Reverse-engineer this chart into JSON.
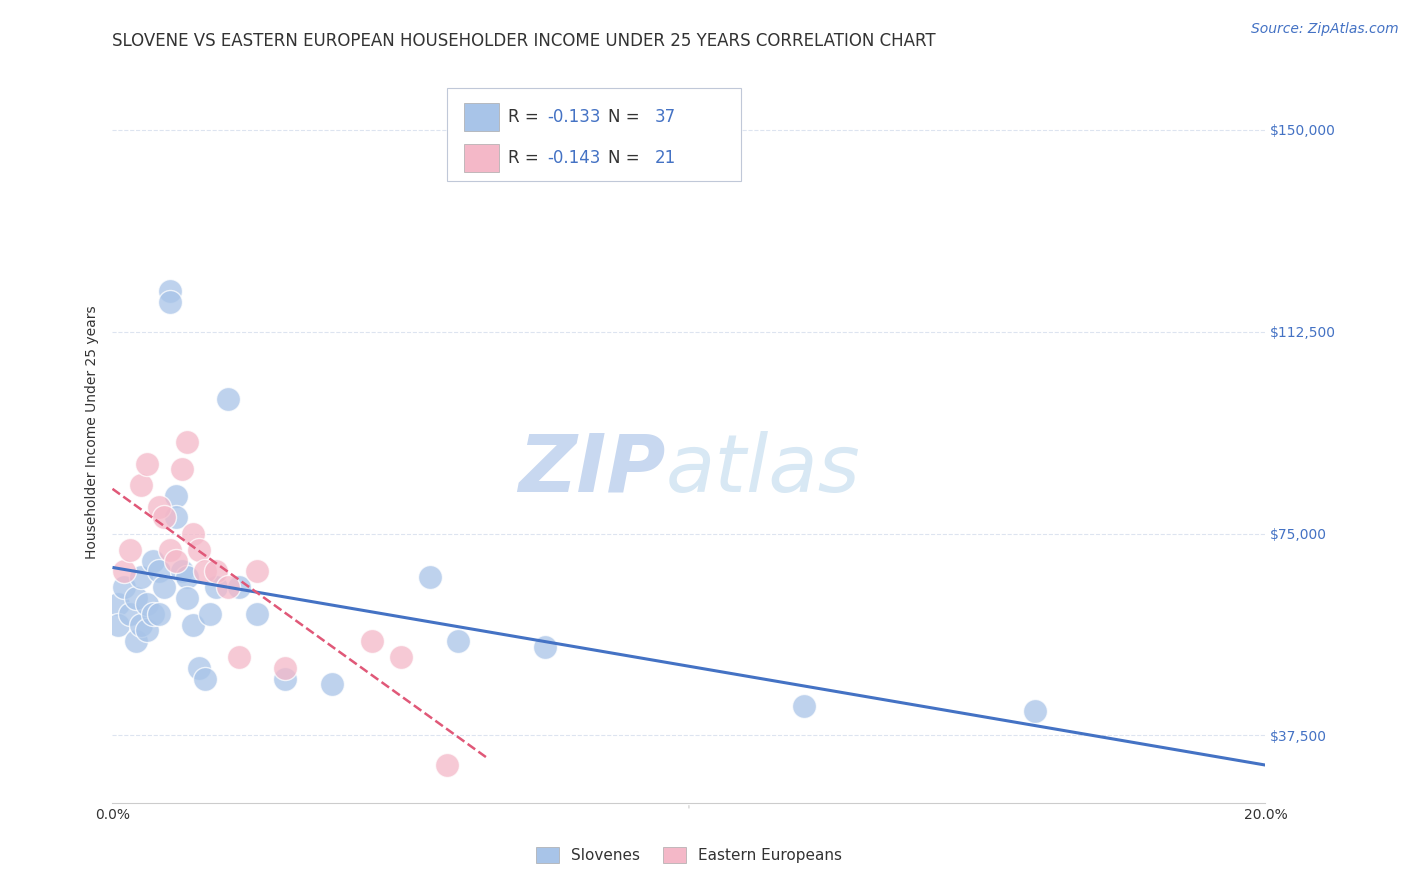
{
  "title": "SLOVENE VS EASTERN EUROPEAN HOUSEHOLDER INCOME UNDER 25 YEARS CORRELATION CHART",
  "source": "Source: ZipAtlas.com",
  "ylabel": "Householder Income Under 25 years",
  "xlim": [
    0.0,
    0.2
  ],
  "ylim": [
    25000,
    162500
  ],
  "yticks": [
    37500,
    75000,
    112500,
    150000
  ],
  "ytick_labels": [
    "$37,500",
    "$75,000",
    "$112,500",
    "$150,000"
  ],
  "xticks": [
    0.0,
    0.04,
    0.08,
    0.12,
    0.16,
    0.2
  ],
  "xtick_labels": [
    "0.0%",
    "",
    "",
    "",
    "",
    "20.0%"
  ],
  "legend_R_slovenes": "-0.133",
  "legend_N_slovenes": "37",
  "legend_R_eastern": "-0.143",
  "legend_N_eastern": "21",
  "slovene_color": "#a8c4e8",
  "eastern_color": "#f4b8c8",
  "slovene_line_color": "#4472c4",
  "eastern_line_color": "#e05878",
  "background_color": "#ffffff",
  "grid_color": "#dde4f0",
  "watermark_color": "#e8eef8",
  "slovene_points_x": [
    0.001,
    0.001,
    0.002,
    0.003,
    0.004,
    0.004,
    0.005,
    0.005,
    0.006,
    0.006,
    0.007,
    0.007,
    0.008,
    0.008,
    0.009,
    0.01,
    0.01,
    0.011,
    0.011,
    0.012,
    0.013,
    0.013,
    0.014,
    0.015,
    0.016,
    0.017,
    0.018,
    0.02,
    0.022,
    0.025,
    0.03,
    0.038,
    0.055,
    0.06,
    0.075,
    0.12,
    0.16
  ],
  "slovene_points_y": [
    62000,
    58000,
    65000,
    60000,
    63000,
    55000,
    67000,
    58000,
    62000,
    57000,
    70000,
    60000,
    68000,
    60000,
    65000,
    120000,
    118000,
    82000,
    78000,
    68000,
    67000,
    63000,
    58000,
    50000,
    48000,
    60000,
    65000,
    100000,
    65000,
    60000,
    48000,
    47000,
    67000,
    55000,
    54000,
    43000,
    42000
  ],
  "eastern_points_x": [
    0.002,
    0.003,
    0.005,
    0.006,
    0.008,
    0.009,
    0.01,
    0.011,
    0.012,
    0.013,
    0.014,
    0.015,
    0.016,
    0.018,
    0.02,
    0.022,
    0.025,
    0.03,
    0.045,
    0.05,
    0.058
  ],
  "eastern_points_y": [
    68000,
    72000,
    84000,
    88000,
    80000,
    78000,
    72000,
    70000,
    87000,
    92000,
    75000,
    72000,
    68000,
    68000,
    65000,
    52000,
    68000,
    50000,
    55000,
    52000,
    32000
  ],
  "title_fontsize": 12,
  "axis_label_fontsize": 10,
  "tick_fontsize": 10,
  "source_fontsize": 10,
  "legend_fontsize": 12
}
